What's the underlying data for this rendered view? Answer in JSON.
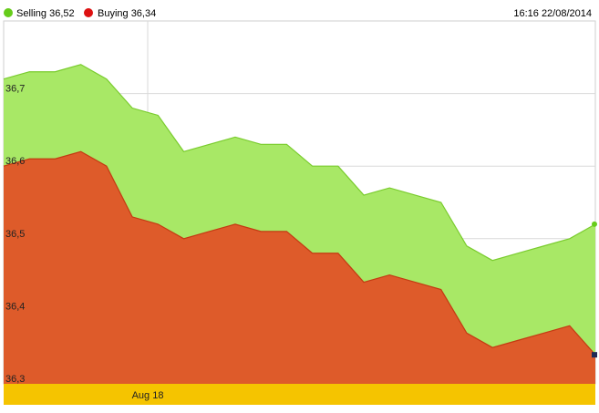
{
  "legend": {
    "selling_label": "Selling 36,52",
    "buying_label": "Buying 36,34"
  },
  "timestamp": "16:16 22/08/2014",
  "colors": {
    "selling_fill": "#a8e866",
    "selling_line": "#7acc2e",
    "selling_dot": "#66cc1a",
    "buying_fill": "#de5b2a",
    "buying_line": "#c43a12",
    "buying_dot": "#dd1111",
    "axis_band": "#f5c400",
    "grid": "#d9d9d9",
    "end_marker": "#1f2a55"
  },
  "chart_data": {
    "type": "area",
    "x_tick_labels": [
      "Aug 18"
    ],
    "y_tick_labels": [
      "36,3",
      "36,4",
      "36,5",
      "36,6",
      "36,7"
    ],
    "ylim": [
      36.3,
      36.8
    ],
    "grid": true,
    "legend_position": "top-left",
    "series": [
      {
        "name": "Selling",
        "values": [
          36.72,
          36.73,
          36.73,
          36.74,
          36.72,
          36.68,
          36.67,
          36.62,
          36.63,
          36.64,
          36.63,
          36.63,
          36.6,
          36.6,
          36.56,
          36.57,
          36.56,
          36.55,
          36.49,
          36.47,
          36.48,
          36.49,
          36.5,
          36.52
        ]
      },
      {
        "name": "Buying",
        "values": [
          36.6,
          36.61,
          36.61,
          36.62,
          36.6,
          36.53,
          36.52,
          36.5,
          36.51,
          36.52,
          36.51,
          36.51,
          36.48,
          36.48,
          36.44,
          36.45,
          36.44,
          36.43,
          36.37,
          36.35,
          36.36,
          36.37,
          36.38,
          36.34
        ]
      }
    ]
  }
}
